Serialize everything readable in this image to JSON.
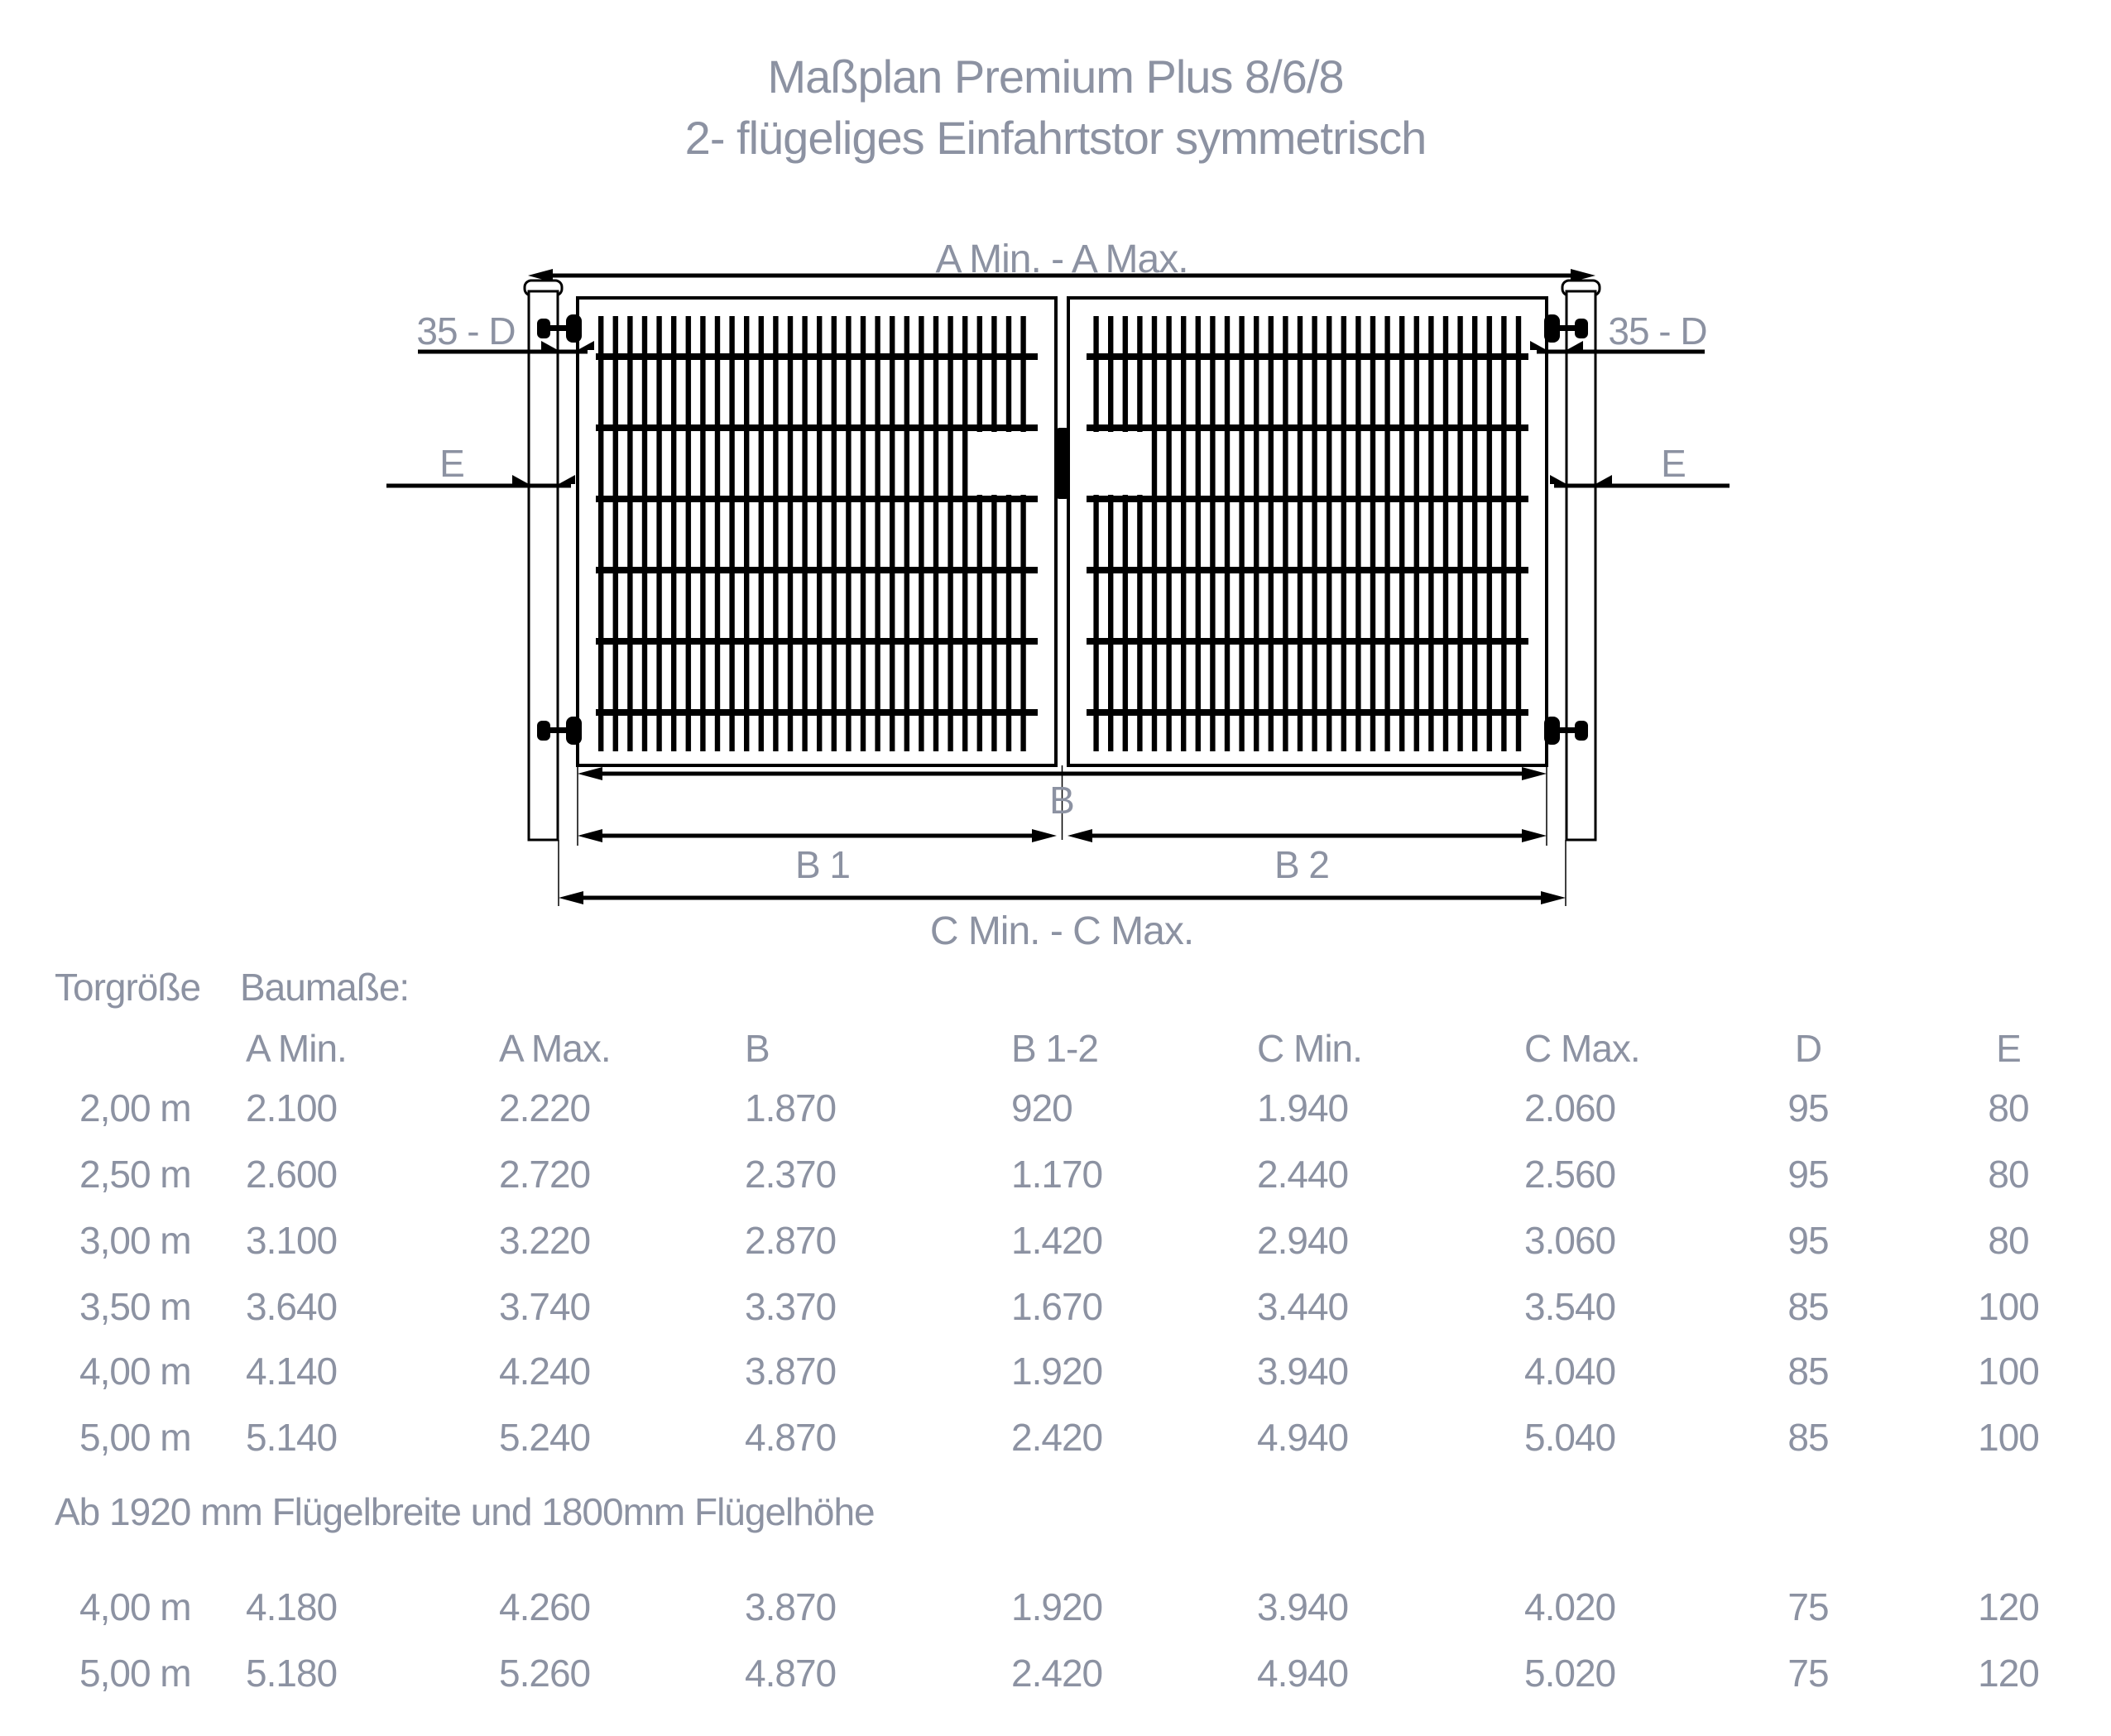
{
  "title": {
    "line1": "Maßplan Premium Plus 8/6/8",
    "line2": "2- flügeliges Einfahrtstor symmetrisch"
  },
  "diagram": {
    "labels": {
      "a": "A Min. - A Max.",
      "d_left": "35 - D",
      "d_right": "35 - D",
      "e_left": "E",
      "e_right": "E",
      "b": "B",
      "b1": "B 1",
      "b2": "B 2",
      "c": "C Min. - C Max."
    }
  },
  "table": {
    "col_size": "Torgröße",
    "col_group": "Baumaße:",
    "columns": [
      "A Min.",
      "A Max.",
      "B",
      "B 1-2",
      "C Min.",
      "C Max.",
      "D",
      "E"
    ],
    "rows": [
      [
        "2,00 m",
        "2.100",
        "2.220",
        "1.870",
        "920",
        "1.940",
        "2.060",
        "95",
        "80"
      ],
      [
        "2,50 m",
        "2.600",
        "2.720",
        "2.370",
        "1.170",
        "2.440",
        "2.560",
        "95",
        "80"
      ],
      [
        "3,00 m",
        "3.100",
        "3.220",
        "2.870",
        "1.420",
        "2.940",
        "3.060",
        "95",
        "80"
      ],
      [
        "3,50 m",
        "3.640",
        "3.740",
        "3.370",
        "1.670",
        "3.440",
        "3.540",
        "85",
        "100"
      ],
      [
        "4,00 m",
        "4.140",
        "4.240",
        "3.870",
        "1.920",
        "3.940",
        "4.040",
        "85",
        "100"
      ],
      [
        "5,00 m",
        "5.140",
        "5.240",
        "4.870",
        "2.420",
        "4.940",
        "5.040",
        "85",
        "100"
      ]
    ],
    "note": "Ab 1920 mm Flügelbreite und 1800mm Flügelhöhe",
    "rows2": [
      [
        "4,00 m",
        "4.180",
        "4.260",
        "3.870",
        "1.920",
        "3.940",
        "4.020",
        "75",
        "120"
      ],
      [
        "5,00 m",
        "5.180",
        "5.260",
        "4.870",
        "2.420",
        "4.940",
        "5.020",
        "75",
        "120"
      ]
    ]
  },
  "colors": {
    "text_gray": "#8c92a2",
    "line_black": "#000000"
  }
}
